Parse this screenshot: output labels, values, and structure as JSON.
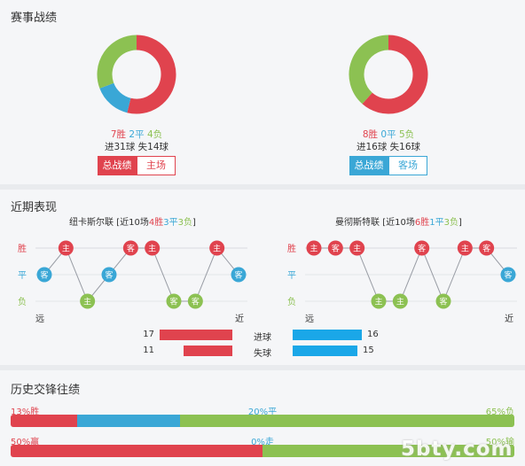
{
  "section1": {
    "title": "赛事战绩",
    "left": {
      "wins": "7胜",
      "draws": "2平",
      "losses": "4负",
      "goals": "进31球  失14球",
      "tab_active": "总战绩",
      "tab_other": "主场",
      "donut": [
        7,
        2,
        4
      ]
    },
    "right": {
      "wins": "8胜",
      "draws": "0平",
      "losses": "5负",
      "goals": "进16球  失16球",
      "tab_active": "总战绩",
      "tab_other": "客场",
      "donut": [
        8,
        0,
        5
      ]
    }
  },
  "section2": {
    "title": "近期表现",
    "left_team": {
      "name": "纽卡斯尔联",
      "summary_prefix": "[近10场",
      "w": "4胜",
      "d": "3平",
      "l": "3负",
      "summary_suffix": "]"
    },
    "right_team": {
      "name": "曼彻斯特联",
      "summary_prefix": "[近10场",
      "w": "6胜",
      "d": "1平",
      "l": "3负",
      "summary_suffix": "]"
    },
    "axis": {
      "win": "胜",
      "draw": "平",
      "loss": "负",
      "far": "远",
      "near": "近"
    },
    "left_form": [
      {
        "r": "D",
        "v": "客"
      },
      {
        "r": "W",
        "v": "主"
      },
      {
        "r": "L",
        "v": "主"
      },
      {
        "r": "D",
        "v": "客"
      },
      {
        "r": "W",
        "v": "客"
      },
      {
        "r": "W",
        "v": "主"
      },
      {
        "r": "L",
        "v": "客"
      },
      {
        "r": "L",
        "v": "客"
      },
      {
        "r": "W",
        "v": "主"
      },
      {
        "r": "D",
        "v": "客"
      }
    ],
    "right_form": [
      {
        "r": "W",
        "v": "主"
      },
      {
        "r": "W",
        "v": "客"
      },
      {
        "r": "W",
        "v": "主"
      },
      {
        "r": "L",
        "v": "主"
      },
      {
        "r": "L",
        "v": "主"
      },
      {
        "r": "W",
        "v": "客"
      },
      {
        "r": "L",
        "v": "客"
      },
      {
        "r": "W",
        "v": "主"
      },
      {
        "r": "W",
        "v": "客"
      },
      {
        "r": "D",
        "v": "客"
      }
    ],
    "stats": {
      "goals_label": "进球",
      "conceded_label": "失球",
      "left_goals": 17,
      "left_conceded": 11,
      "right_goals": 16,
      "right_conceded": 15
    }
  },
  "section3": {
    "title": "历史交锋往绩",
    "bar1": {
      "left_label": "13%胜",
      "mid_label": "20%平",
      "right_label": "65%负",
      "a": 13,
      "b": 20,
      "c": 65
    },
    "bar2": {
      "left_label": "50%赢",
      "mid_label": "0%走",
      "right_label": "50%输",
      "a": 50,
      "b": 0,
      "c": 50
    }
  },
  "watermark": "5bty.com",
  "colors": {
    "red": "#e0434e",
    "blue": "#3aa7d6",
    "green": "#8cc152",
    "gray": "#b9bcc2"
  }
}
